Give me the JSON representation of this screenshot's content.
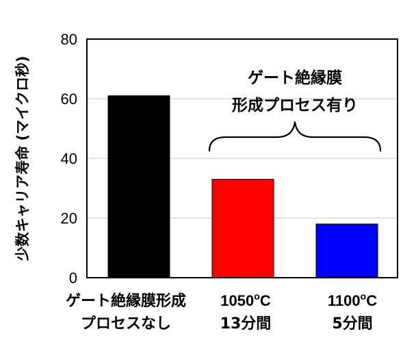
{
  "chart_data": {
    "type": "bar",
    "ylabel": "少数キャリア寿命 (マイクロ秒)",
    "ylim": [
      0,
      80
    ],
    "yticks": [
      "0",
      "20",
      "40",
      "60",
      "80"
    ],
    "grid": true,
    "categories": [
      {
        "line1": "ゲート絶縁膜形成",
        "line2": "プロセスなし"
      },
      {
        "line1": "1050",
        "sup": "o",
        "unit": "C",
        "line2": "13分間"
      },
      {
        "line1": "1100",
        "sup": "o",
        "unit": "C",
        "line2": "5分間"
      }
    ],
    "values": [
      61,
      33,
      18
    ],
    "colors": [
      "#000000",
      "#ff0000",
      "#0000ff"
    ],
    "annotation": {
      "line1": "ゲート絶縁膜",
      "line2": "形成プロセス有り",
      "spans_categories": [
        1,
        2
      ]
    }
  }
}
